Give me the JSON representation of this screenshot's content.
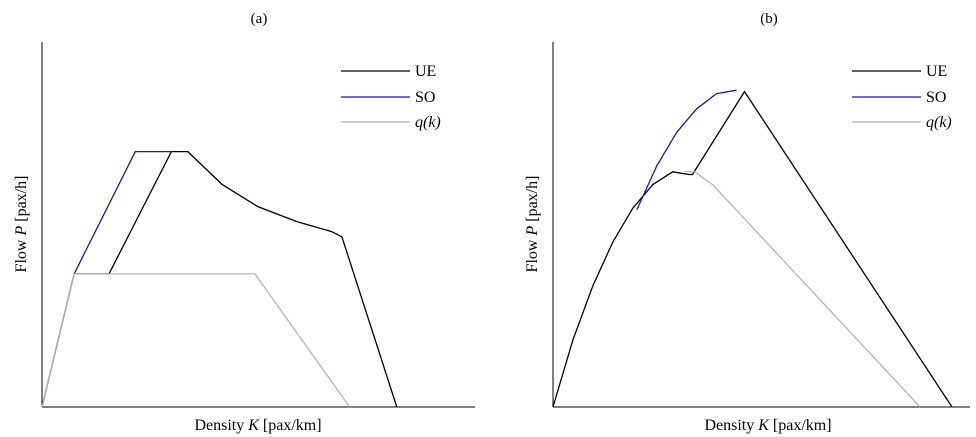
{
  "chart_data": [
    {
      "type": "line",
      "title": "(a)",
      "xlabel_prefix": "Density ",
      "xlabel_var": "K",
      "xlabel_unit": " [pax/km]",
      "ylabel_prefix": "Flow ",
      "ylabel_var": "P",
      "ylabel_unit": " [pax/h]",
      "xlim": [
        0,
        10
      ],
      "ylim": [
        0,
        10
      ],
      "grid": false,
      "legend_position": "top-right",
      "series": [
        {
          "name": "UE",
          "color": "#000000",
          "x": [
            0,
            0.82,
            1.71,
            3.3,
            3.72,
            4.6,
            5.5,
            6.5,
            7.4,
            7.65,
            9.05
          ],
          "y": [
            0,
            3.95,
            3.95,
            7.58,
            7.58,
            6.6,
            5.95,
            5.5,
            5.2,
            5.05,
            0
          ]
        },
        {
          "name": "SO",
          "color": "#1a1aaa",
          "x": [
            0.82,
            2.38,
            3.3
          ],
          "y": [
            3.95,
            7.58,
            7.58
          ]
        },
        {
          "name": "q(k)",
          "color": "#b4b4b4",
          "x": [
            0,
            0.82,
            5.43,
            7.85
          ],
          "y": [
            0,
            3.95,
            3.95,
            0
          ]
        }
      ]
    },
    {
      "type": "line",
      "title": "(b)",
      "xlabel_prefix": "Density ",
      "xlabel_var": "K",
      "xlabel_unit": " [pax/km]",
      "ylabel_prefix": "Flow ",
      "ylabel_var": "P",
      "ylabel_unit": " [pax/h]",
      "xlim": [
        0,
        10
      ],
      "ylim": [
        0,
        10
      ],
      "grid": false,
      "legend_position": "top-right",
      "series": [
        {
          "name": "UE",
          "color": "#000000",
          "x": [
            0,
            0.5,
            1.0,
            1.5,
            2.0,
            2.5,
            3.0,
            3.4,
            3.5,
            3.55,
            4.8,
            10.0
          ],
          "y": [
            0,
            2.0,
            3.6,
            4.9,
            5.9,
            6.6,
            6.98,
            6.9,
            6.9,
            7.0,
            9.36,
            0
          ]
        },
        {
          "name": "SO",
          "color": "#1a1aaa",
          "x": [
            2.1,
            2.6,
            3.1,
            3.6,
            4.1,
            4.6
          ],
          "y": [
            5.85,
            7.15,
            8.15,
            8.85,
            9.3,
            9.4
          ]
        },
        {
          "name": "q(k)",
          "color": "#b4b4b4",
          "x": [
            3.3,
            3.55,
            4.0,
            9.2
          ],
          "y": [
            6.98,
            6.98,
            6.6,
            0
          ]
        }
      ]
    }
  ]
}
